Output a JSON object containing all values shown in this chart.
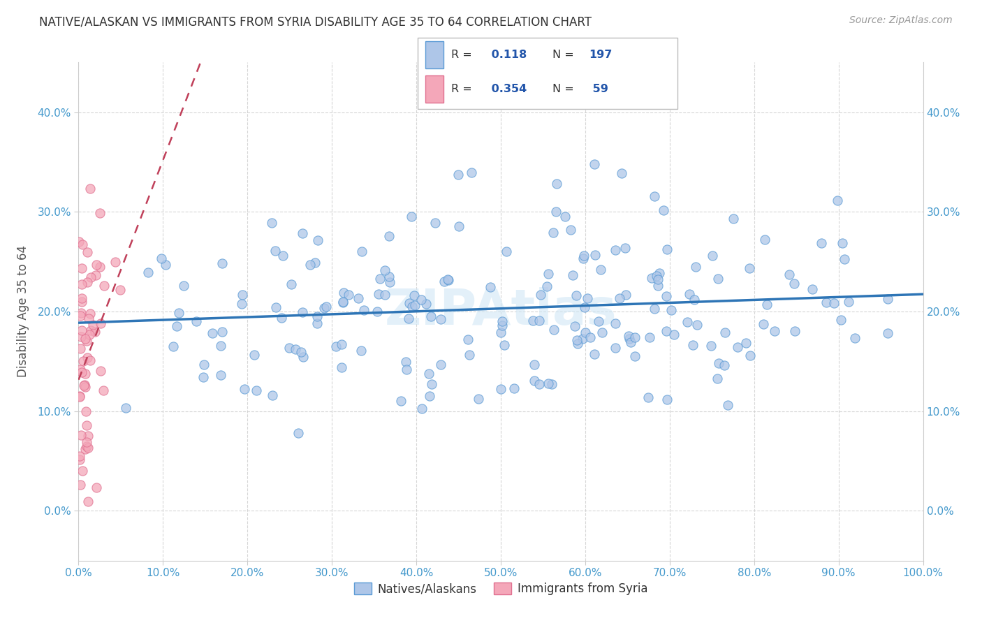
{
  "title": "NATIVE/ALASKAN VS IMMIGRANTS FROM SYRIA DISABILITY AGE 35 TO 64 CORRELATION CHART",
  "source": "Source: ZipAtlas.com",
  "ylabel": "Disability Age 35 to 64",
  "xlim": [
    0.0,
    1.0
  ],
  "ylim": [
    -0.05,
    0.45
  ],
  "xticks": [
    0.0,
    0.1,
    0.2,
    0.3,
    0.4,
    0.5,
    0.6,
    0.7,
    0.8,
    0.9,
    1.0
  ],
  "yticks": [
    0.0,
    0.1,
    0.2,
    0.3,
    0.4
  ],
  "xticklabels": [
    "0.0%",
    "10.0%",
    "20.0%",
    "30.0%",
    "40.0%",
    "50.0%",
    "60.0%",
    "70.0%",
    "80.0%",
    "90.0%",
    "100.0%"
  ],
  "yticklabels": [
    "0.0%",
    "10.0%",
    "20.0%",
    "30.0%",
    "40.0%"
  ],
  "native_R": 0.118,
  "native_N": 197,
  "syria_R": 0.354,
  "syria_N": 59,
  "native_color": "#aec6e8",
  "native_edge_color": "#5b9bd5",
  "native_line_color": "#2e75b6",
  "syria_color": "#f4a7b9",
  "syria_edge_color": "#e07090",
  "syria_line_color": "#c0405a",
  "scatter_alpha": 0.75,
  "scatter_size": 90,
  "watermark": "ZIPAtlas",
  "legend_labels": [
    "Natives/Alaskans",
    "Immigrants from Syria"
  ],
  "background_color": "#ffffff",
  "grid_color": "#cccccc",
  "title_color": "#333333",
  "axis_label_color": "#555555",
  "tick_label_color": "#4499cc",
  "source_color": "#999999",
  "legend_R_color": "#2255aa",
  "legend_N_color": "#2255aa"
}
